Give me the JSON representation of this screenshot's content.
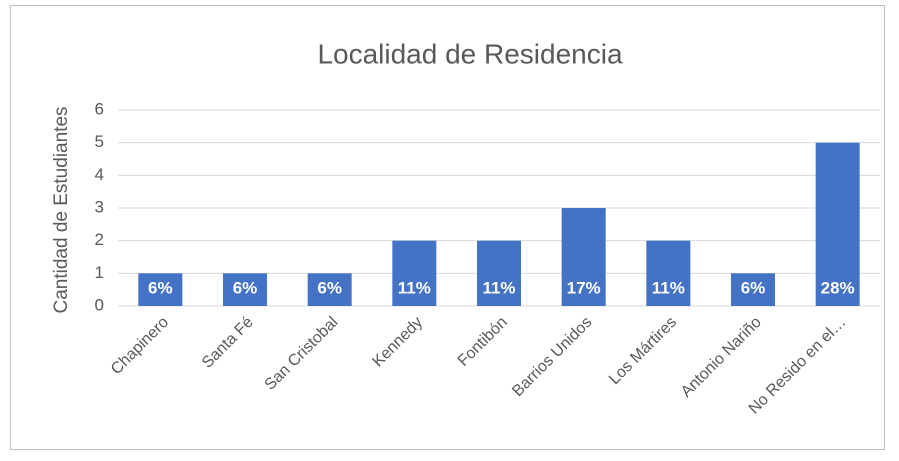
{
  "chart_data": {
    "type": "bar",
    "title": "Localidad de Residencia",
    "y_label": "Cantidad de Estudiantes",
    "categories": [
      "Chapinero",
      "Santa Fé",
      "San Cristobal",
      "Kennedy",
      "Fontibón",
      "Barrios Unidos",
      "Los Mártires",
      "Antonio Nariño",
      "No Resido en el…"
    ],
    "values": [
      1,
      1,
      1,
      2,
      2,
      3,
      2,
      1,
      5
    ],
    "percent_labels": [
      "6%",
      "6%",
      "6%",
      "11%",
      "11%",
      "17%",
      "11%",
      "6%",
      "28%"
    ],
    "color": "#4472c4",
    "ylim": [
      0,
      6
    ],
    "yticks": [
      0,
      1,
      2,
      3,
      4,
      5,
      6
    ],
    "grid": true
  }
}
